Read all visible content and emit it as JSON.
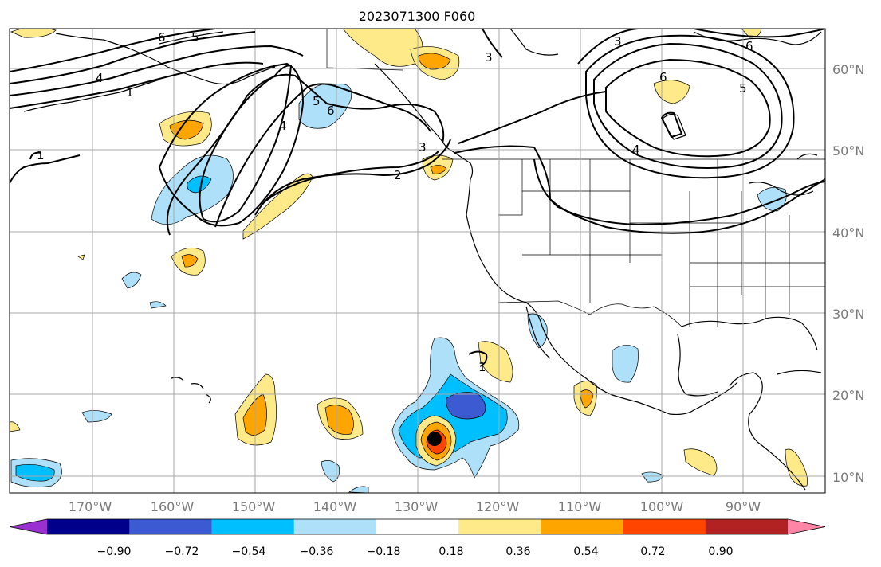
{
  "title": "2023071300 F060",
  "lon_labels": [
    "170°W",
    "160°W",
    "150°W",
    "140°W",
    "130°W",
    "120°W",
    "110°W",
    "100°W",
    "90°W"
  ],
  "lat_labels": [
    "60°N",
    "50°N",
    "40°N",
    "30°N",
    "20°N",
    "10°N"
  ],
  "contour_labels": [
    "6",
    "5",
    "4",
    "3",
    "1",
    "4",
    "5",
    "6",
    "2",
    "3",
    "3",
    "6",
    "6",
    "5",
    "4",
    "1",
    "1"
  ],
  "colorbar": {
    "ticks": [
      "−0.90",
      "−0.72",
      "−0.54",
      "−0.36",
      "−0.18",
      "0.18",
      "0.36",
      "0.54",
      "0.72",
      "0.90"
    ],
    "colors": [
      "#9b30d0",
      "#00008b",
      "#3c5ad2",
      "#00bfff",
      "#aee0fa",
      "#ffffff",
      "#ffea8a",
      "#ffa500",
      "#ff4500",
      "#b22222",
      "#ff85a7"
    ]
  },
  "marker": {
    "label": "storm-center",
    "color": "#000000"
  }
}
